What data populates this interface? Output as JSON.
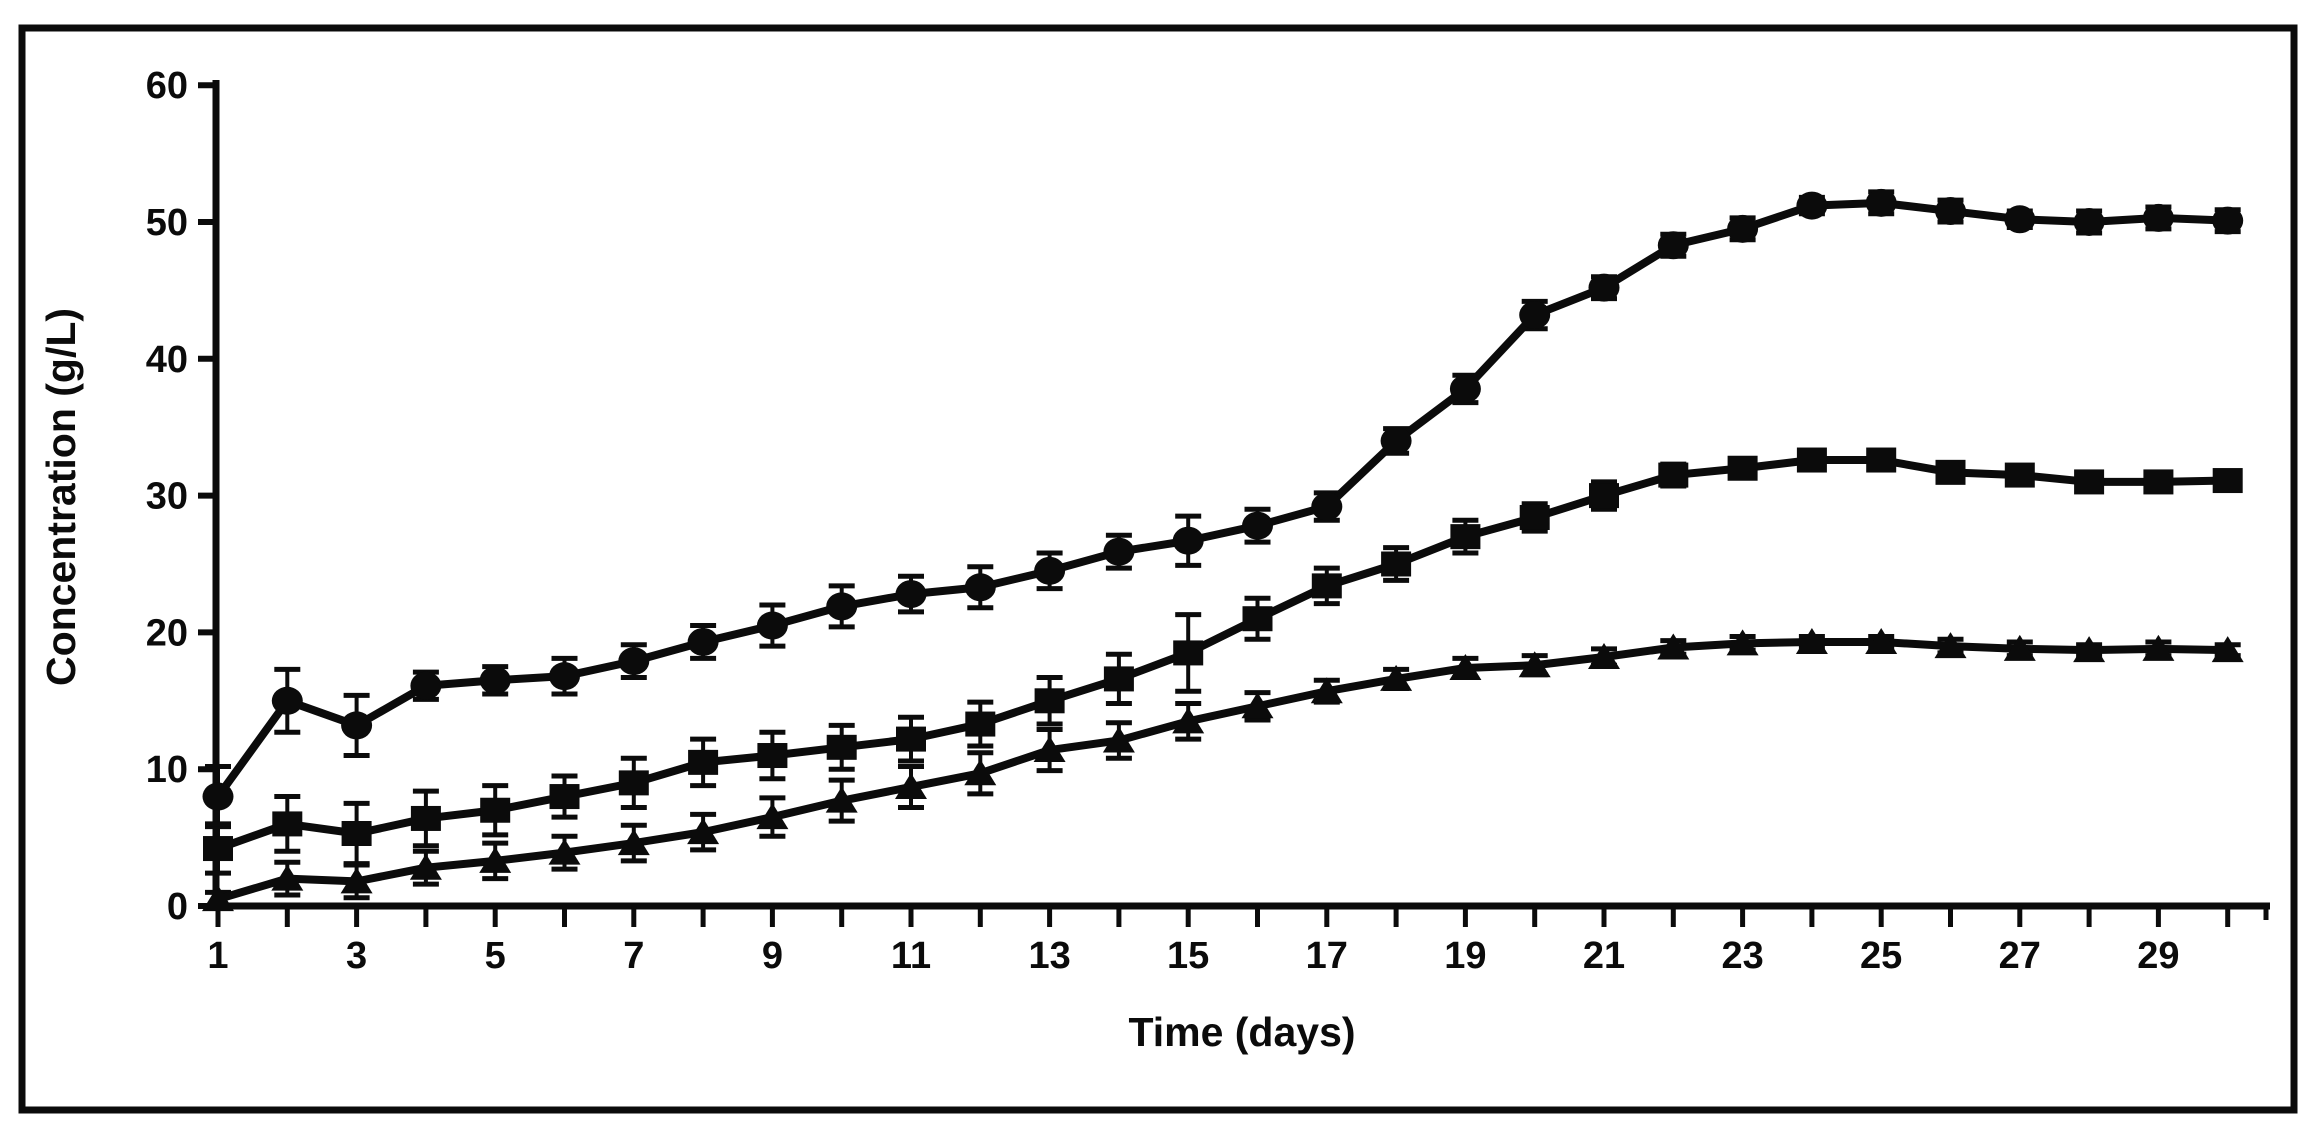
{
  "figure": {
    "background": "#ffffff",
    "frame_color": "#0b0b0b",
    "ink_color": "#0b0b0b"
  },
  "chart_data": {
    "type": "line",
    "title": "",
    "xlabel": "Time (days)",
    "ylabel": "Concentration (g/L)",
    "x": [
      1,
      2,
      3,
      4,
      5,
      6,
      7,
      8,
      9,
      10,
      11,
      12,
      13,
      14,
      15,
      16,
      17,
      18,
      19,
      20,
      21,
      22,
      23,
      24,
      25,
      26,
      27,
      28,
      29,
      30
    ],
    "x_tick_labels": [
      "1",
      "3",
      "5",
      "7",
      "9",
      "11",
      "13",
      "15",
      "17",
      "19",
      "21",
      "23",
      "25",
      "27",
      "29"
    ],
    "x_labeled_days": [
      1,
      3,
      5,
      7,
      9,
      11,
      13,
      15,
      17,
      19,
      21,
      23,
      25,
      27,
      29
    ],
    "xlim": [
      0.5,
      30.8
    ],
    "ylim": [
      0,
      60
    ],
    "y_ticks": [
      0,
      10,
      20,
      30,
      40,
      50,
      60
    ],
    "grid": false,
    "legend_position": "none",
    "error_bars": true,
    "series": [
      {
        "name": "circle-series",
        "marker": "circle",
        "color": "#0b0b0b",
        "values": [
          8.0,
          15.0,
          13.2,
          16.1,
          16.5,
          16.8,
          17.9,
          19.3,
          20.5,
          21.9,
          22.8,
          23.3,
          24.5,
          25.9,
          26.7,
          27.8,
          29.2,
          34.0,
          37.8,
          43.2,
          45.2,
          48.3,
          49.5,
          51.2,
          51.4,
          50.8,
          50.2,
          50.0,
          50.3,
          50.1
        ],
        "errors": [
          2.2,
          2.3,
          2.2,
          1.0,
          1.0,
          1.3,
          1.2,
          1.2,
          1.5,
          1.5,
          1.3,
          1.5,
          1.3,
          1.2,
          1.8,
          1.2,
          1.0,
          0.9,
          1.0,
          1.0,
          0.8,
          0.8,
          0.8,
          0.6,
          0.8,
          0.8,
          0.6,
          0.8,
          0.8,
          0.8
        ]
      },
      {
        "name": "square-series",
        "marker": "square",
        "color": "#0b0b0b",
        "values": [
          4.2,
          6.0,
          5.3,
          6.4,
          7.0,
          8.0,
          9.0,
          10.5,
          11.0,
          11.6,
          12.2,
          13.3,
          15.0,
          16.6,
          18.5,
          21.0,
          23.4,
          25.0,
          27.0,
          28.4,
          30.0,
          31.5,
          32.0,
          32.6,
          32.6,
          31.7,
          31.5,
          31.0,
          31.0,
          31.1
        ],
        "errors": [
          1.8,
          2.0,
          2.2,
          2.0,
          1.8,
          1.5,
          1.8,
          1.7,
          1.7,
          1.6,
          1.6,
          1.6,
          1.7,
          1.8,
          2.8,
          1.5,
          1.3,
          1.2,
          1.2,
          1.0,
          1.0,
          0.8,
          0.7,
          0.6,
          0.7,
          0.6,
          0.6,
          0.6,
          0.6,
          0.7
        ]
      },
      {
        "name": "triangle-series",
        "marker": "triangle-up",
        "color": "#0b0b0b",
        "values": [
          0.5,
          2.0,
          1.8,
          2.8,
          3.3,
          3.9,
          4.6,
          5.4,
          6.5,
          7.7,
          8.7,
          9.7,
          11.4,
          12.1,
          13.5,
          14.6,
          15.7,
          16.6,
          17.4,
          17.6,
          18.2,
          18.9,
          19.2,
          19.3,
          19.3,
          19.0,
          18.8,
          18.7,
          18.8,
          18.7
        ],
        "errors": [
          0.5,
          1.2,
          1.2,
          1.2,
          1.3,
          1.2,
          1.3,
          1.3,
          1.4,
          1.5,
          1.5,
          1.5,
          1.5,
          1.3,
          1.3,
          1.0,
          0.8,
          0.7,
          0.7,
          0.7,
          0.6,
          0.5,
          0.5,
          0.4,
          0.4,
          0.5,
          0.5,
          0.4,
          0.5,
          0.4
        ]
      }
    ]
  }
}
